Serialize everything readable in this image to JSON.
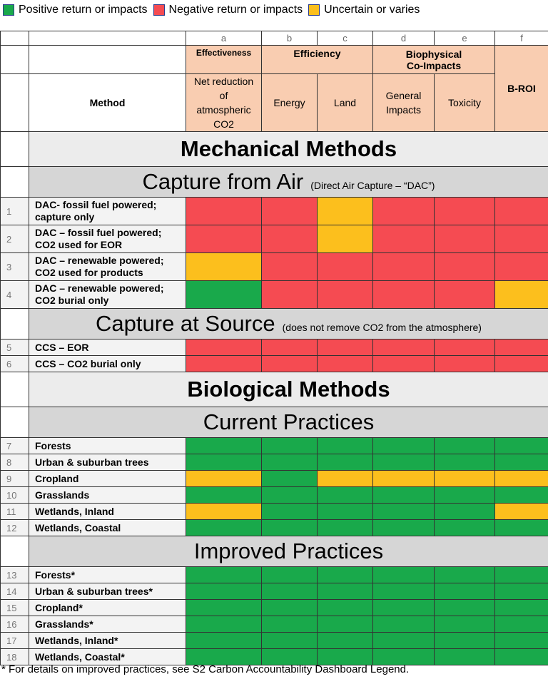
{
  "legend": [
    {
      "label": "Positive return or impacts",
      "color": "#19a94b"
    },
    {
      "label": "Negative return or impacts",
      "color": "#f54b52"
    },
    {
      "label": "Uncertain or varies",
      "color": "#fcbf1d"
    }
  ],
  "header": {
    "letters": [
      "a",
      "b",
      "c",
      "d",
      "e",
      "f"
    ],
    "effectiveness": "Effectiveness",
    "efficiency": "Efficiency",
    "biophysical": "Biophysical Co-Impacts",
    "broi": "B-ROI",
    "method": "Method",
    "net_reduction": "Net reduction of atmospheric CO2",
    "energy": "Energy",
    "land": "Land",
    "general_impacts": "General Impacts",
    "toxicity": "Toxicity"
  },
  "sections": [
    {
      "title": "Mechanical Methods",
      "groups": [
        {
          "title": "Capture from Air",
          "note": "(Direct Air Capture – “DAC”)",
          "rows": [
            {
              "number": 1,
              "method": "DAC- fossil fuel powered; capture only",
              "cells": [
                "#f54b52",
                "#f54b52",
                "#fcbf1d",
                "#f54b52",
                "#f54b52",
                "#f54b52"
              ]
            },
            {
              "number": 2,
              "method": "DAC – fossil fuel powered; CO2 used for EOR",
              "cells": [
                "#f54b52",
                "#f54b52",
                "#fcbf1d",
                "#f54b52",
                "#f54b52",
                "#f54b52"
              ]
            },
            {
              "number": 3,
              "method": "DAC – renewable powered; CO2 used for products",
              "cells": [
                "#fcbf1d",
                "#f54b52",
                "#f54b52",
                "#f54b52",
                "#f54b52",
                "#f54b52"
              ]
            },
            {
              "number": 4,
              "method": "DAC – renewable powered; CO2 burial only",
              "cells": [
                "#19a94b",
                "#f54b52",
                "#f54b52",
                "#f54b52",
                "#f54b52",
                "#fcbf1d"
              ]
            }
          ]
        },
        {
          "title": "Capture at Source",
          "note": "(does not remove CO2 from the atmosphere)",
          "rows": [
            {
              "number": 5,
              "method": "CCS – EOR",
              "cells": [
                "#f54b52",
                "#f54b52",
                "#f54b52",
                "#f54b52",
                "#f54b52",
                "#f54b52"
              ]
            },
            {
              "number": 6,
              "method": "CCS – CO2 burial only",
              "cells": [
                "#f54b52",
                "#f54b52",
                "#f54b52",
                "#f54b52",
                "#f54b52",
                "#f54b52"
              ]
            }
          ]
        }
      ]
    },
    {
      "title": "Biological Methods",
      "groups": [
        {
          "title": "Current Practices",
          "rows": [
            {
              "number": 7,
              "method": "Forests",
              "cells": [
                "#19a94b",
                "#19a94b",
                "#19a94b",
                "#19a94b",
                "#19a94b",
                "#19a94b"
              ]
            },
            {
              "number": 8,
              "method": "Urban & suburban trees",
              "cells": [
                "#19a94b",
                "#19a94b",
                "#19a94b",
                "#19a94b",
                "#19a94b",
                "#19a94b"
              ]
            },
            {
              "number": 9,
              "method": "Cropland",
              "cells": [
                "#fcbf1d",
                "#19a94b",
                "#fcbf1d",
                "#fcbf1d",
                "#fcbf1d",
                "#fcbf1d"
              ]
            },
            {
              "number": 10,
              "method": "Grasslands",
              "cells": [
                "#19a94b",
                "#19a94b",
                "#19a94b",
                "#19a94b",
                "#19a94b",
                "#19a94b"
              ]
            },
            {
              "number": 11,
              "method": "Wetlands, Inland",
              "cells": [
                "#fcbf1d",
                "#19a94b",
                "#19a94b",
                "#19a94b",
                "#19a94b",
                "#fcbf1d"
              ]
            },
            {
              "number": 12,
              "method": "Wetlands, Coastal",
              "cells": [
                "#19a94b",
                "#19a94b",
                "#19a94b",
                "#19a94b",
                "#19a94b",
                "#19a94b"
              ]
            }
          ]
        },
        {
          "title": "Improved Practices",
          "rows": [
            {
              "number": 13,
              "method": "Forests*",
              "cells": [
                "#19a94b",
                "#19a94b",
                "#19a94b",
                "#19a94b",
                "#19a94b",
                "#19a94b"
              ]
            },
            {
              "number": 14,
              "method": "Urban & suburban trees*",
              "cells": [
                "#19a94b",
                "#19a94b",
                "#19a94b",
                "#19a94b",
                "#19a94b",
                "#19a94b"
              ]
            },
            {
              "number": 15,
              "method": "Cropland*",
              "cells": [
                "#19a94b",
                "#19a94b",
                "#19a94b",
                "#19a94b",
                "#19a94b",
                "#19a94b"
              ]
            },
            {
              "number": 16,
              "method": "Grasslands*",
              "cells": [
                "#19a94b",
                "#19a94b",
                "#19a94b",
                "#19a94b",
                "#19a94b",
                "#19a94b"
              ]
            },
            {
              "number": 17,
              "method": "Wetlands, Inland*",
              "cells": [
                "#19a94b",
                "#19a94b",
                "#19a94b",
                "#19a94b",
                "#19a94b",
                "#19a94b"
              ]
            },
            {
              "number": 18,
              "method": "Wetlands, Coastal*",
              "cells": [
                "#19a94b",
                "#19a94b",
                "#19a94b",
                "#19a94b",
                "#19a94b",
                "#19a94b"
              ]
            }
          ]
        }
      ]
    }
  ],
  "footnote": "* For details on improved practices, see S2 Carbon Accountability Dashboard Legend."
}
